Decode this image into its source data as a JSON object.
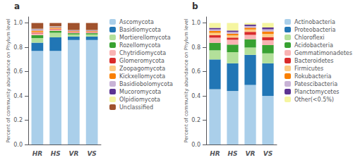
{
  "chart_data": [
    {
      "type": "bar",
      "stacked": true,
      "annotations": [
        "a"
      ],
      "ylabel": "Percent of community abundance on Phylum level",
      "categories": [
        "HR",
        "HS",
        "VR",
        "VS"
      ],
      "series": [
        {
          "name": "Ascomycota",
          "color": "#aacfea",
          "values": [
            0.77,
            0.77,
            0.86,
            0.86
          ]
        },
        {
          "name": "Basidiomycota",
          "color": "#2176b5",
          "values": [
            0.068,
            0.112,
            0.028,
            0.028
          ]
        },
        {
          "name": "Mortierellomycota",
          "color": "#b3e09a",
          "values": [
            0.038,
            0.038,
            0.018,
            0.018
          ]
        },
        {
          "name": "Rozellomycota",
          "color": "#38a232",
          "values": [
            0.024,
            0.016,
            0.01,
            0.01
          ]
        },
        {
          "name": "Chytridiomycota",
          "color": "#f9b3b3",
          "values": [
            0.014,
            0.009,
            0.007,
            0.007
          ]
        },
        {
          "name": "Glomeromycota",
          "color": "#d92b2b",
          "values": [
            0.007,
            0.005,
            0.004,
            0.004
          ]
        },
        {
          "name": "Zoopagomycota",
          "color": "#fdcc85",
          "values": [
            0.007,
            0.005,
            0.004,
            0.004
          ]
        },
        {
          "name": "Kickxellomycota",
          "color": "#f97f00",
          "values": [
            0.009,
            0.007,
            0.004,
            0.004
          ]
        },
        {
          "name": "Basidiobolomycota",
          "color": "#c8b3d6",
          "values": [
            0.007,
            0.005,
            0.003,
            0.003
          ]
        },
        {
          "name": "Mucoromycota",
          "color": "#5c3492",
          "values": [
            0.005,
            0.003,
            0.002,
            0.002
          ]
        },
        {
          "name": "Olpidiomycota",
          "color": "#f5f5a0",
          "values": [
            0.004,
            0.003,
            0.002,
            0.002
          ]
        },
        {
          "name": "Unclassified",
          "color": "#a0522d",
          "values": [
            0.047,
            0.027,
            0.058,
            0.058
          ]
        }
      ],
      "ylim": [
        0,
        1.05
      ],
      "yticks": [
        {
          "value": 0,
          "label": "0.0"
        },
        0.2,
        0.4,
        0.6,
        0.8,
        {
          "value": 1,
          "label": "1.0"
        }
      ],
      "grid": false,
      "legend": "right"
    },
    {
      "type": "bar",
      "stacked": true,
      "annotations": [
        "b"
      ],
      "ylabel": "Percent of community abundance on Phylum level",
      "categories": [
        "HR",
        "HS",
        "VR",
        "VS"
      ],
      "series": [
        {
          "name": "Actinobacteria",
          "color": "#aacfea",
          "values": [
            0.455,
            0.44,
            0.49,
            0.4
          ]
        },
        {
          "name": "Proteobacteria",
          "color": "#2176b5",
          "values": [
            0.245,
            0.228,
            0.248,
            0.268
          ]
        },
        {
          "name": "Chloroflexi",
          "color": "#b3e09a",
          "values": [
            0.075,
            0.092,
            0.06,
            0.082
          ]
        },
        {
          "name": "Acidobacteria",
          "color": "#38a232",
          "values": [
            0.062,
            0.062,
            0.068,
            0.068
          ]
        },
        {
          "name": "Gemmatimonadetes",
          "color": "#f9b3b3",
          "values": [
            0.042,
            0.04,
            0.036,
            0.04
          ]
        },
        {
          "name": "Bacteroidetes",
          "color": "#d92b2b",
          "values": [
            0.02,
            0.018,
            0.025,
            0.026
          ]
        },
        {
          "name": "Firmicutes",
          "color": "#fdcc85",
          "values": [
            0.02,
            0.018,
            0.02,
            0.026
          ]
        },
        {
          "name": "Rokubacteria",
          "color": "#f97f00",
          "values": [
            0.015,
            0.014,
            0.014,
            0.02
          ]
        },
        {
          "name": "Patescibacteria",
          "color": "#c8b3d6",
          "values": [
            0.014,
            0.014,
            0.014,
            0.018
          ]
        },
        {
          "name": "Planctomycetes",
          "color": "#5c3492",
          "values": [
            0.012,
            0.012,
            0.012,
            0.015
          ]
        },
        {
          "name": "Other(<0.5%)",
          "color": "#f5f5a0",
          "values": [
            0.04,
            0.062,
            0.013,
            0.037
          ]
        }
      ],
      "ylim": [
        0,
        1.05
      ],
      "yticks": [
        {
          "value": 0,
          "label": "0.0"
        },
        0.2,
        0.4,
        0.6,
        0.8,
        {
          "value": 1,
          "label": "1.0"
        }
      ],
      "grid": false,
      "legend": "right"
    }
  ]
}
